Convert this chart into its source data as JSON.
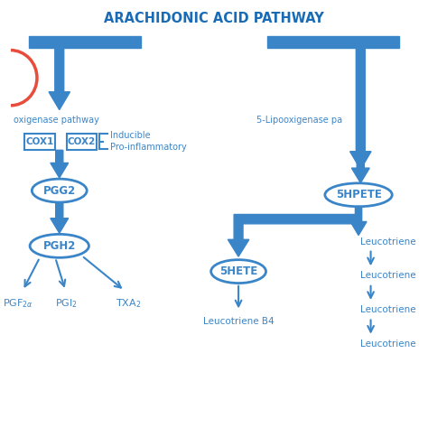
{
  "title": "ARACHIDONIC ACID PATHWAY",
  "title_color": "#1a6bb5",
  "bg_color": "#ffffff",
  "blue": "#3a85c8",
  "left_pathway_label": "oxigenase pathway",
  "right_pathway_label": "5-Lipooxigenase pa",
  "cox1_label": "COX1",
  "cox2_label": "COX2",
  "cox2_annotation": "Inducible\nPro-inflammatory",
  "red_circle_color": "#e74c3c"
}
